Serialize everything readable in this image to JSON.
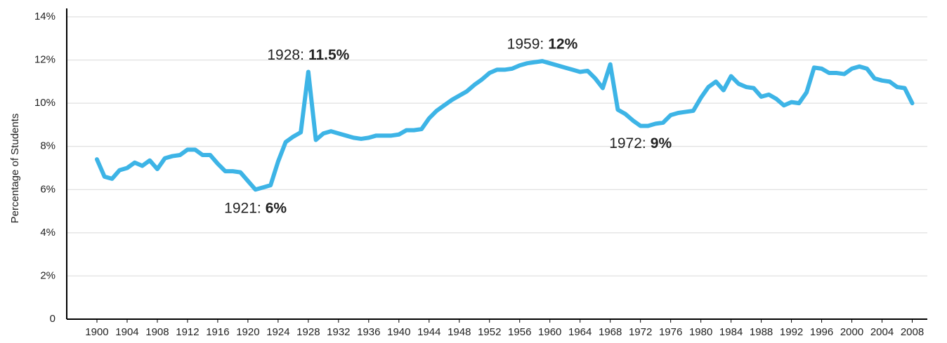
{
  "chart_data": {
    "type": "line",
    "y_label": "Percentage of Students",
    "x": [
      1900,
      1901,
      1902,
      1903,
      1904,
      1905,
      1906,
      1907,
      1908,
      1909,
      1910,
      1911,
      1912,
      1913,
      1914,
      1915,
      1916,
      1917,
      1918,
      1919,
      1920,
      1921,
      1922,
      1923,
      1924,
      1925,
      1926,
      1927,
      1928,
      1929,
      1930,
      1931,
      1932,
      1933,
      1934,
      1935,
      1936,
      1937,
      1938,
      1939,
      1940,
      1941,
      1942,
      1943,
      1944,
      1945,
      1946,
      1947,
      1948,
      1949,
      1950,
      1951,
      1952,
      1953,
      1954,
      1955,
      1956,
      1957,
      1958,
      1959,
      1960,
      1961,
      1962,
      1963,
      1964,
      1965,
      1966,
      1967,
      1968,
      1969,
      1970,
      1971,
      1972,
      1973,
      1974,
      1975,
      1976,
      1977,
      1978,
      1979,
      1980,
      1981,
      1982,
      1983,
      1984,
      1985,
      1986,
      1987,
      1988,
      1989,
      1990,
      1991,
      1992,
      1993,
      1994,
      1995,
      1996,
      1997,
      1998,
      1999,
      2000,
      2001,
      2002,
      2003,
      2004,
      2005,
      2006,
      2007,
      2008
    ],
    "series": [
      {
        "name": "Percentage of Students",
        "color": "#3db4e6",
        "values": [
          7.4,
          6.6,
          6.5,
          6.9,
          7.0,
          7.25,
          7.1,
          7.35,
          6.95,
          7.45,
          7.55,
          7.6,
          7.85,
          7.85,
          7.6,
          7.6,
          7.2,
          6.85,
          6.85,
          6.8,
          6.4,
          6.0,
          6.1,
          6.2,
          7.3,
          8.2,
          8.45,
          8.65,
          11.45,
          8.3,
          8.6,
          8.7,
          8.6,
          8.5,
          8.4,
          8.35,
          8.4,
          8.5,
          8.5,
          8.5,
          8.55,
          8.75,
          8.75,
          8.8,
          9.3,
          9.65,
          9.9,
          10.15,
          10.35,
          10.55,
          10.85,
          11.1,
          11.4,
          11.55,
          11.55,
          11.6,
          11.75,
          11.85,
          11.9,
          11.95,
          11.85,
          11.75,
          11.65,
          11.55,
          11.45,
          11.5,
          11.15,
          10.7,
          11.8,
          9.7,
          9.5,
          9.2,
          8.95,
          8.95,
          9.05,
          9.1,
          9.45,
          9.55,
          9.6,
          9.65,
          10.25,
          10.75,
          11.0,
          10.6,
          11.25,
          10.9,
          10.75,
          10.7,
          10.3,
          10.4,
          10.2,
          9.9,
          10.05,
          10.0,
          10.5,
          11.65,
          11.6,
          11.4,
          11.4,
          11.35,
          11.6,
          11.7,
          11.6,
          11.15,
          11.05,
          11.0,
          10.75,
          10.7,
          10.0
        ]
      }
    ],
    "xlim": [
      1896,
      2010
    ],
    "xticks": [
      1900,
      1904,
      1908,
      1912,
      1916,
      1920,
      1924,
      1928,
      1932,
      1936,
      1940,
      1944,
      1948,
      1952,
      1956,
      1960,
      1964,
      1968,
      1972,
      1976,
      1980,
      1984,
      1988,
      1992,
      1996,
      2000,
      2004,
      2008
    ],
    "ylim": [
      0,
      14
    ],
    "yticks": [
      0,
      {
        "value": 2,
        "label": "2%"
      },
      {
        "value": 4,
        "label": "4%"
      },
      {
        "value": 6,
        "label": "6%"
      },
      {
        "value": 8,
        "label": "8%"
      },
      {
        "value": 10,
        "label": "10%"
      },
      {
        "value": 12,
        "label": "12%"
      },
      {
        "value": 14,
        "label": "14%"
      }
    ],
    "grid": true,
    "annotations": [
      {
        "x": 1921,
        "y": 6,
        "label": "1921:",
        "value_label": "6%",
        "position": "below"
      },
      {
        "x": 1928,
        "y": 11.5,
        "label": "1928:",
        "value_label": "11.5%",
        "position": "above"
      },
      {
        "x": 1959,
        "y": 12,
        "label": "1959:",
        "value_label": "12%",
        "position": "above"
      },
      {
        "x": 1972,
        "y": 9,
        "label": "1972:",
        "value_label": "9%",
        "position": "below"
      }
    ]
  }
}
